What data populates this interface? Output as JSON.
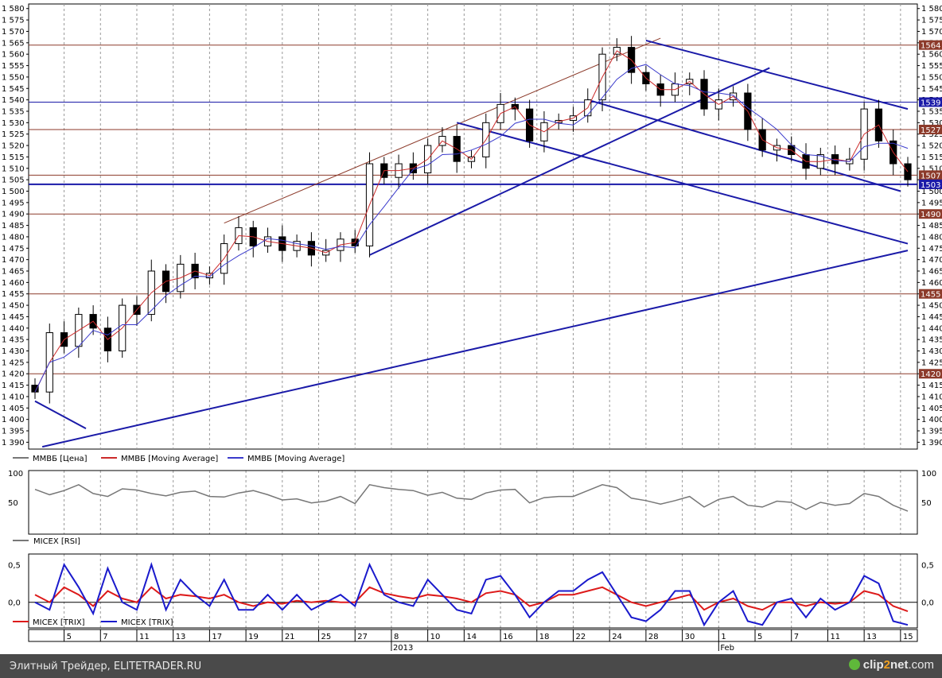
{
  "footer": {
    "caption": "Элитный Трейдер, ELITETRADER.RU",
    "logo_a": "clip",
    "logo_b": "2",
    "logo_c": "net",
    "logo_d": ".com"
  },
  "chart_data": [
    {
      "type": "candlestick",
      "panel": "price",
      "ylim": [
        1387,
        1582
      ],
      "yticks": [
        1390,
        1395,
        1400,
        1405,
        1410,
        1415,
        1420,
        1425,
        1430,
        1435,
        1440,
        1445,
        1450,
        1455,
        1460,
        1465,
        1470,
        1475,
        1480,
        1485,
        1490,
        1495,
        1500,
        1505,
        1510,
        1515,
        1520,
        1525,
        1530,
        1535,
        1540,
        1545,
        1550,
        1555,
        1560,
        1565,
        1570,
        1575,
        1580
      ],
      "legend": [
        "ММВБ [Цена]",
        "ММВБ [Moving Average]",
        "ММВБ [Moving Average]"
      ],
      "series_colors": {
        "price": "#000000",
        "ma_fast": "#cc2a2a",
        "ma_slow": "#3a3acc"
      },
      "x": [
        0,
        1,
        2,
        3,
        4,
        5,
        6,
        7,
        8,
        9,
        10,
        11,
        12,
        13,
        14,
        15,
        16,
        17,
        18,
        19,
        20,
        21,
        22,
        23,
        24,
        25,
        26,
        27,
        28,
        29,
        30,
        31,
        32,
        33,
        34,
        35,
        36,
        37,
        38,
        39,
        40,
        41,
        42,
        43,
        44,
        45,
        46,
        47,
        48,
        49,
        50,
        51,
        52,
        53,
        54,
        55,
        56,
        57,
        58,
        59,
        60
      ],
      "close": [
        1412,
        1438,
        1432,
        1446,
        1440,
        1430,
        1450,
        1446,
        1465,
        1456,
        1468,
        1462,
        1464,
        1477,
        1484,
        1476,
        1480,
        1474,
        1478,
        1472,
        1474,
        1479,
        1476,
        1512,
        1506,
        1512,
        1508,
        1520,
        1524,
        1513,
        1515,
        1530,
        1538,
        1536,
        1522,
        1530,
        1531,
        1533,
        1540,
        1560,
        1563,
        1552,
        1547,
        1542,
        1547,
        1549,
        1536,
        1540,
        1543,
        1527,
        1518,
        1520,
        1516,
        1510,
        1516,
        1512,
        1514,
        1536,
        1522,
        1512,
        1505
      ],
      "price_labels": [
        {
          "value": 1564,
          "label": "1564",
          "color": "#8c3a2a"
        },
        {
          "value": 1539,
          "label": "1539",
          "color": "#1a1aa8"
        },
        {
          "value": 1527,
          "label": "1527",
          "color": "#8c3a2a"
        },
        {
          "value": 1507,
          "label": "1507",
          "color": "#8c3a2a"
        },
        {
          "value": 1503,
          "label": "1503",
          "color": "#1a1aa8"
        },
        {
          "value": 1490,
          "label": "1490",
          "color": "#8c3a2a"
        },
        {
          "value": 1455,
          "label": "1455",
          "color": "#8c3a2a"
        },
        {
          "value": 1420,
          "label": "1420",
          "color": "#8c3a2a"
        }
      ],
      "trendlines": [
        {
          "from": [
            0.0,
            1408
          ],
          "to": [
            3.5,
            1396
          ],
          "color": "#1a1aa8"
        },
        {
          "from": [
            0.5,
            1388
          ],
          "to": [
            60.0,
            1474
          ],
          "color": "#1a1aa8"
        },
        {
          "from": [
            13.0,
            1486
          ],
          "to": [
            43.0,
            1567
          ],
          "color": "#8c3a2a"
        },
        {
          "from": [
            23.0,
            1472
          ],
          "to": [
            50.5,
            1554
          ],
          "color": "#1a1aa8"
        },
        {
          "from": [
            29.0,
            1530
          ],
          "to": [
            60.0,
            1477
          ],
          "color": "#1a1aa8"
        },
        {
          "from": [
            38.0,
            1540
          ],
          "to": [
            59.5,
            1500
          ],
          "color": "#1a1aa8"
        },
        {
          "from": [
            42.0,
            1566
          ],
          "to": [
            60.0,
            1536
          ],
          "color": "#1a1aa8"
        }
      ]
    },
    {
      "type": "line",
      "panel": "rsi",
      "ylim": [
        0,
        100
      ],
      "yticks": [
        50,
        100
      ],
      "legend": [
        "MICEX [RSI]"
      ],
      "series": [
        {
          "name": "MICEX [RSI]",
          "color": "#777777",
          "values": [
            72,
            63,
            70,
            80,
            65,
            60,
            73,
            71,
            65,
            61,
            67,
            69,
            60,
            59,
            66,
            70,
            63,
            54,
            56,
            49,
            52,
            60,
            48,
            80,
            75,
            72,
            70,
            62,
            67,
            57,
            55,
            66,
            71,
            72,
            49,
            58,
            60,
            60,
            70,
            80,
            75,
            57,
            53,
            47,
            53,
            60,
            42,
            55,
            60,
            45,
            42,
            52,
            50,
            38,
            50,
            45,
            48,
            65,
            60,
            45,
            35
          ]
        }
      ]
    },
    {
      "type": "line",
      "panel": "trix",
      "ylim": [
        -0.34,
        0.64
      ],
      "yticks": [
        0.5,
        0.0
      ],
      "ytick_labels": [
        "0,5",
        "0,0"
      ],
      "legend": [
        "MICEX [TRIX]",
        "MICEX [TRIX]"
      ],
      "series": [
        {
          "name": "MICEX [TRIX]",
          "color": "#dd1a1a",
          "values": [
            0.1,
            0.0,
            0.2,
            0.1,
            -0.05,
            0.15,
            0.05,
            0.0,
            0.2,
            0.05,
            0.1,
            0.08,
            0.05,
            0.1,
            0.0,
            -0.05,
            0.0,
            -0.02,
            0.02,
            0.0,
            0.02,
            0.0,
            0.0,
            0.2,
            0.12,
            0.08,
            0.05,
            0.1,
            0.08,
            0.05,
            0.0,
            0.12,
            0.15,
            0.1,
            -0.05,
            0.0,
            0.1,
            0.1,
            0.15,
            0.2,
            0.1,
            0.0,
            -0.05,
            0.0,
            0.05,
            0.1,
            -0.1,
            0.0,
            0.05,
            -0.05,
            -0.1,
            0.0,
            0.0,
            -0.05,
            0.0,
            -0.02,
            0.0,
            0.15,
            0.1,
            -0.05,
            -0.12
          ]
        },
        {
          "name": "MICEX [TRIX]",
          "color": "#1a1acc",
          "values": [
            0.0,
            -0.1,
            0.5,
            0.2,
            -0.15,
            0.45,
            0.0,
            -0.1,
            0.5,
            -0.1,
            0.3,
            0.1,
            -0.05,
            0.3,
            -0.1,
            -0.1,
            0.1,
            -0.1,
            0.1,
            -0.1,
            0.0,
            0.1,
            -0.05,
            0.5,
            0.1,
            0.0,
            -0.05,
            0.3,
            0.1,
            -0.1,
            -0.15,
            0.3,
            0.35,
            0.1,
            -0.2,
            0.0,
            0.15,
            0.15,
            0.3,
            0.4,
            0.1,
            -0.2,
            -0.25,
            -0.1,
            0.15,
            0.15,
            -0.3,
            0.0,
            0.15,
            -0.25,
            -0.3,
            0.0,
            0.05,
            -0.2,
            0.05,
            -0.1,
            0.0,
            0.35,
            0.25,
            -0.25,
            -0.3
          ]
        }
      ]
    }
  ],
  "x_axis": {
    "ticks": [
      {
        "i": 2,
        "label": "5"
      },
      {
        "i": 4.5,
        "label": "7"
      },
      {
        "i": 7,
        "label": "11"
      },
      {
        "i": 9.5,
        "label": "13"
      },
      {
        "i": 12,
        "label": "17"
      },
      {
        "i": 14.5,
        "label": "19"
      },
      {
        "i": 17,
        "label": "21"
      },
      {
        "i": 19.5,
        "label": "25"
      },
      {
        "i": 22,
        "label": "27"
      },
      {
        "i": 24.5,
        "label": "8"
      },
      {
        "i": 27,
        "label": "10"
      },
      {
        "i": 29.5,
        "label": "14"
      },
      {
        "i": 32,
        "label": "16"
      },
      {
        "i": 34.5,
        "label": "18"
      },
      {
        "i": 37,
        "label": "22"
      },
      {
        "i": 39.5,
        "label": "24"
      },
      {
        "i": 42,
        "label": "28"
      },
      {
        "i": 44.5,
        "label": "30"
      },
      {
        "i": 47,
        "label": "1"
      },
      {
        "i": 49.5,
        "label": "5"
      },
      {
        "i": 52,
        "label": "7"
      },
      {
        "i": 54.5,
        "label": "11"
      },
      {
        "i": 57,
        "label": "13"
      },
      {
        "i": 59.5,
        "label": "15"
      }
    ],
    "sub_labels": [
      {
        "i": 24.5,
        "label": "2013"
      },
      {
        "i": 47,
        "label": "Feb"
      }
    ]
  }
}
